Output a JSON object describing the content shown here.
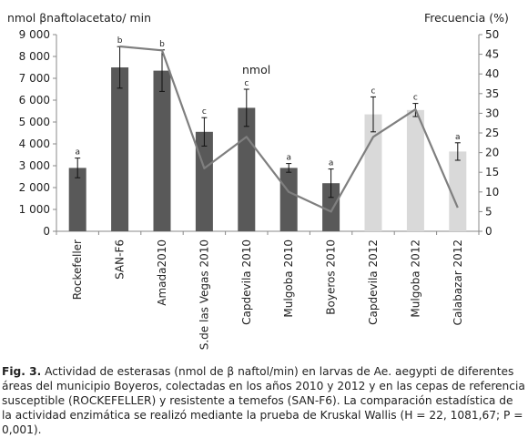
{
  "chart_data": {
    "type": "bar",
    "title": "",
    "ylabel": "nmol βnaftolacetato/ min",
    "y2label": "Frecuencia (%)",
    "xlabel": "",
    "annotation": "nmol",
    "ylim": [
      0,
      9000
    ],
    "y2lim": [
      0,
      50
    ],
    "y_ticks": [
      "0",
      "1 000",
      "2 000",
      "3 000",
      "4 000",
      "5 000",
      "6 000",
      "7 000",
      "8 000",
      "9 000"
    ],
    "y2_ticks": [
      "0",
      "5",
      "10",
      "15",
      "20",
      "25",
      "30",
      "35",
      "40",
      "45",
      "50"
    ],
    "categories": [
      "Rockefeller",
      "SAN-F6",
      "Amada2010",
      "S.de las Vegas 2010",
      "Capdevila 2010",
      "Mulgoba 2010",
      "Boyeros 2010",
      "Capdevila 2012",
      "Mulgoba 2012",
      "Calabazar 2012"
    ],
    "values": [
      2900,
      7500,
      7350,
      4550,
      5650,
      2900,
      2200,
      5350,
      5550,
      3650
    ],
    "errors": [
      450,
      950,
      950,
      650,
      850,
      200,
      650,
      800,
      300,
      400
    ],
    "letters": [
      "a",
      "b",
      "b",
      "c",
      "c",
      "a",
      "a",
      "c",
      "c",
      "a"
    ],
    "bar_colors": [
      "#595959",
      "#595959",
      "#595959",
      "#595959",
      "#595959",
      "#595959",
      "#595959",
      "#d9d9d9",
      "#d9d9d9",
      "#d9d9d9"
    ],
    "line_values": [
      null,
      47,
      46,
      16,
      24,
      10,
      5,
      24,
      31,
      6
    ],
    "line_color": "#7f7f7f",
    "grid": false,
    "legend": "none"
  },
  "caption": {
    "label": "Fig. 3.",
    "text": " Actividad de esterasas (nmol de β naftol/min) en larvas de Ae. aegypti de diferentes áreas del municipio Boyeros, colectadas en los años 2010 y 2012 y en las cepas de referencia susceptible (ROCKEFELLER) y resistente a temefos (SAN-F6). La comparación estadística de la actividad enzimática se realizó mediante la prueba de Kruskal Wallis (H = 22, 1081,67; P = 0,001)."
  }
}
